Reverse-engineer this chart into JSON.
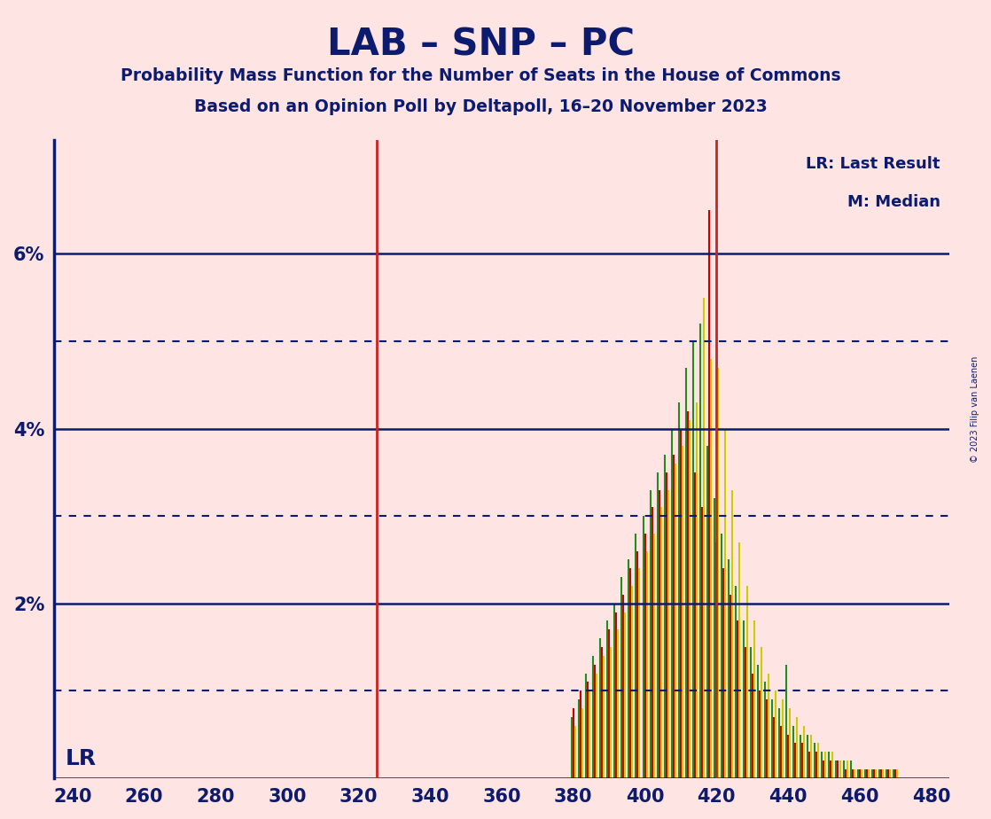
{
  "title": "LAB – SNP – PC",
  "subtitle1": "Probability Mass Function for the Number of Seats in the House of Commons",
  "subtitle2": "Based on an Opinion Poll by Deltapoll, 16–20 November 2023",
  "copyright": "© 2023 Filip van Laenen",
  "lr_label": "LR",
  "lr_line_x": 325,
  "median_line_x": 420,
  "legend_lr": "LR: Last Result",
  "legend_m": "M: Median",
  "xlim": [
    235,
    485
  ],
  "ylim": [
    0.0,
    0.073
  ],
  "solid_hlines": [
    0.0,
    0.02,
    0.04,
    0.06
  ],
  "dotted_hlines": [
    0.01,
    0.03,
    0.05
  ],
  "xticks": [
    240,
    260,
    280,
    300,
    320,
    340,
    360,
    380,
    400,
    420,
    440,
    460,
    480
  ],
  "background_color": "#FFE4E4",
  "bar_colors_order": [
    "#228B22",
    "#CC0000",
    "#CCCC00"
  ],
  "title_color": "#0D1B6E",
  "lr_line_color": "#CC2222",
  "median_line_color": "#CC2222",
  "seats": [
    380,
    382,
    384,
    386,
    388,
    390,
    392,
    394,
    396,
    398,
    400,
    402,
    404,
    406,
    408,
    410,
    412,
    414,
    416,
    418,
    420,
    422,
    424,
    426,
    428,
    430,
    432,
    434,
    436,
    438,
    440,
    442,
    444,
    446,
    448,
    450,
    452,
    454,
    456,
    458,
    460,
    462,
    464,
    466,
    468,
    470
  ],
  "green_vals": [
    0.007,
    0.009,
    0.012,
    0.014,
    0.016,
    0.018,
    0.02,
    0.023,
    0.025,
    0.028,
    0.03,
    0.033,
    0.035,
    0.037,
    0.04,
    0.043,
    0.047,
    0.05,
    0.052,
    0.038,
    0.032,
    0.028,
    0.025,
    0.022,
    0.018,
    0.015,
    0.013,
    0.011,
    0.009,
    0.008,
    0.013,
    0.006,
    0.005,
    0.005,
    0.004,
    0.003,
    0.003,
    0.002,
    0.002,
    0.002,
    0.001,
    0.001,
    0.001,
    0.001,
    0.001,
    0.001
  ],
  "red_vals": [
    0.008,
    0.01,
    0.011,
    0.013,
    0.015,
    0.017,
    0.019,
    0.021,
    0.024,
    0.026,
    0.028,
    0.031,
    0.033,
    0.035,
    0.037,
    0.04,
    0.042,
    0.035,
    0.031,
    0.065,
    0.027,
    0.024,
    0.021,
    0.018,
    0.015,
    0.012,
    0.01,
    0.009,
    0.007,
    0.006,
    0.005,
    0.004,
    0.004,
    0.003,
    0.003,
    0.002,
    0.002,
    0.002,
    0.001,
    0.001,
    0.001,
    0.001,
    0.001,
    0.001,
    0.001,
    0.001
  ],
  "yellow_vals": [
    0.006,
    0.008,
    0.01,
    0.012,
    0.014,
    0.015,
    0.017,
    0.019,
    0.022,
    0.024,
    0.026,
    0.028,
    0.031,
    0.033,
    0.036,
    0.038,
    0.041,
    0.043,
    0.055,
    0.048,
    0.047,
    0.04,
    0.033,
    0.027,
    0.022,
    0.018,
    0.015,
    0.012,
    0.01,
    0.009,
    0.008,
    0.007,
    0.006,
    0.005,
    0.004,
    0.003,
    0.003,
    0.002,
    0.002,
    0.001,
    0.001,
    0.001,
    0.001,
    0.001,
    0.001,
    0.001
  ]
}
